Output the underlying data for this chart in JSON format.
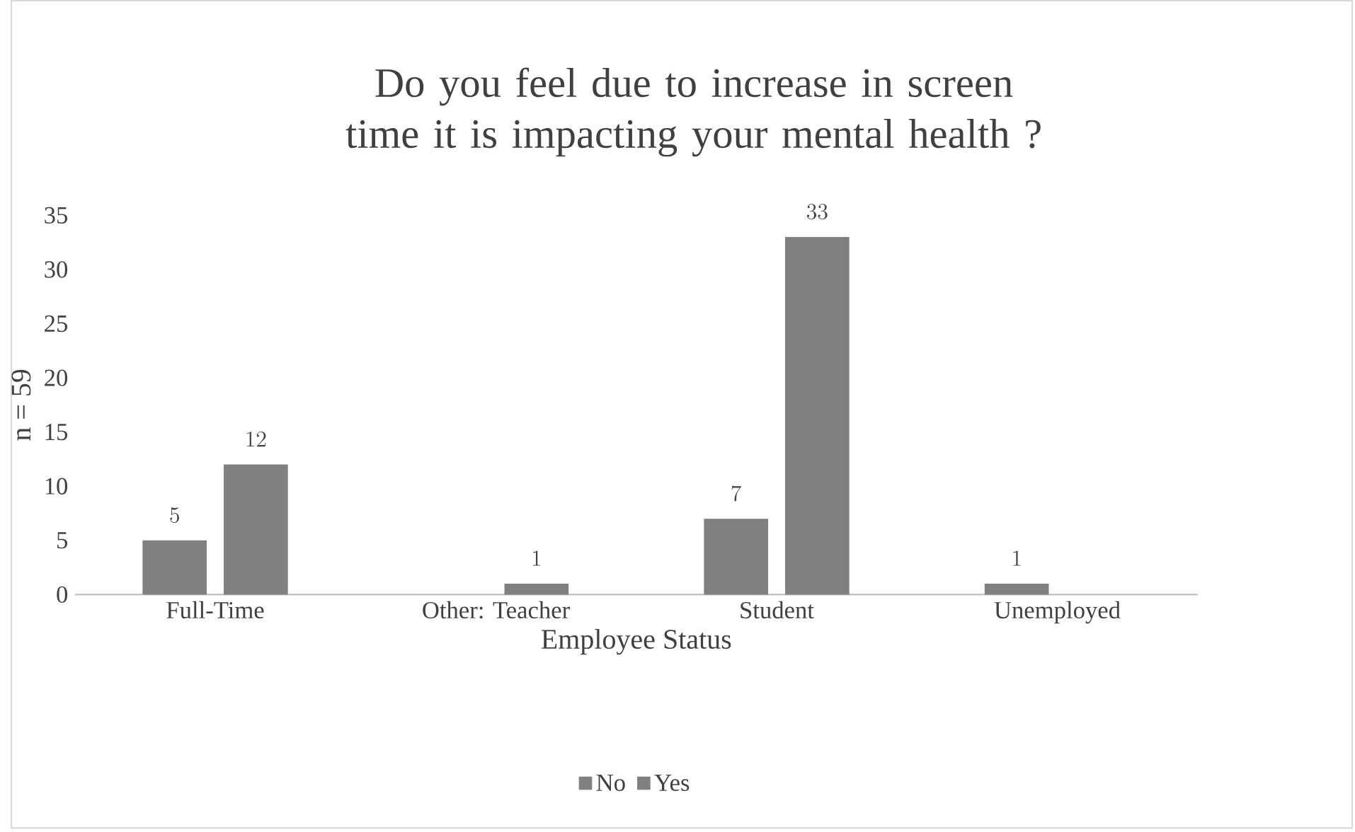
{
  "chart_data": {
    "type": "bar",
    "title": "Do you feel due to increase in screen time it is impacting your mental health ?",
    "xlabel": "Employee Status",
    "ylabel": "n = 59",
    "categories": [
      "Full-Time",
      "Other: Teacher",
      "Student",
      "Unemployed"
    ],
    "series": [
      {
        "name": "No",
        "color": "#808080",
        "values": [
          5,
          null,
          7,
          1
        ]
      },
      {
        "name": "Yes",
        "color": "#808080",
        "values": [
          12,
          1,
          33,
          null
        ]
      }
    ],
    "ylim": [
      0,
      35
    ],
    "yticks": [
      0,
      5,
      10,
      15,
      20,
      25,
      30,
      35
    ],
    "data_labels": true,
    "legend": "bottom"
  }
}
